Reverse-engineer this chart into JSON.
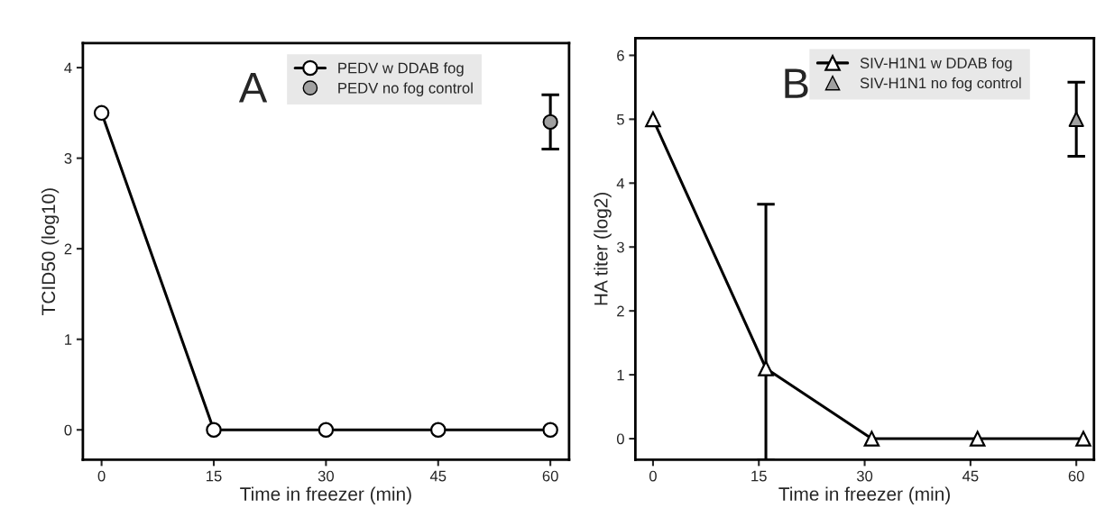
{
  "chart_data": [
    {
      "type": "line",
      "title": "A",
      "xlabel": "Time in freezer (min)",
      "ylabel": "TCID50 (log10)",
      "xlim": [
        -2.5,
        62.5
      ],
      "ylim": [
        -0.33,
        4.27
      ],
      "xticks": [
        0,
        15,
        30,
        45,
        60
      ],
      "yticks": [
        0,
        1,
        2,
        3,
        4
      ],
      "grid": false,
      "legend": "top",
      "marker": "circle",
      "line_style": "solid",
      "series": [
        {
          "name": "PEDV w DDAB fog",
          "color": "#ffffff",
          "x": [
            0,
            15,
            30,
            45,
            60
          ],
          "values": [
            3.5,
            0,
            0,
            0,
            0
          ]
        },
        {
          "name": "PEDV no fog control",
          "type": "scatter",
          "color": "#a0a0a0",
          "x": [
            60
          ],
          "values": [
            3.4
          ],
          "errors": [
            [
              3.1,
              3.7
            ]
          ]
        }
      ]
    },
    {
      "type": "line",
      "title": "B",
      "xlabel": "Time in freezer (min)",
      "ylabel": "HA titer (log2)",
      "xlim": [
        -2.5,
        62.5
      ],
      "ylim": [
        -0.33,
        6.27
      ],
      "xticks": [
        0,
        15,
        30,
        45,
        60
      ],
      "yticks": [
        0,
        1,
        2,
        3,
        4,
        5,
        6
      ],
      "grid": false,
      "legend": "top",
      "marker": "triangle",
      "line_style": "solid",
      "series": [
        {
          "name": "SIV-H1N1 w DDAB fog",
          "color": "#ffffff",
          "x": [
            0,
            16,
            31,
            46,
            61
          ],
          "values": [
            5,
            1.1,
            0,
            0,
            0
          ],
          "errors": [
            null,
            [
              -0.33,
              3.67
            ],
            null,
            null,
            null
          ]
        },
        {
          "name": "SIV-H1N1 no fog control",
          "type": "scatter",
          "color": "#a0a0a0",
          "x": [
            60
          ],
          "values": [
            5.0
          ],
          "errors": [
            [
              4.42,
              5.58
            ]
          ]
        }
      ]
    }
  ]
}
